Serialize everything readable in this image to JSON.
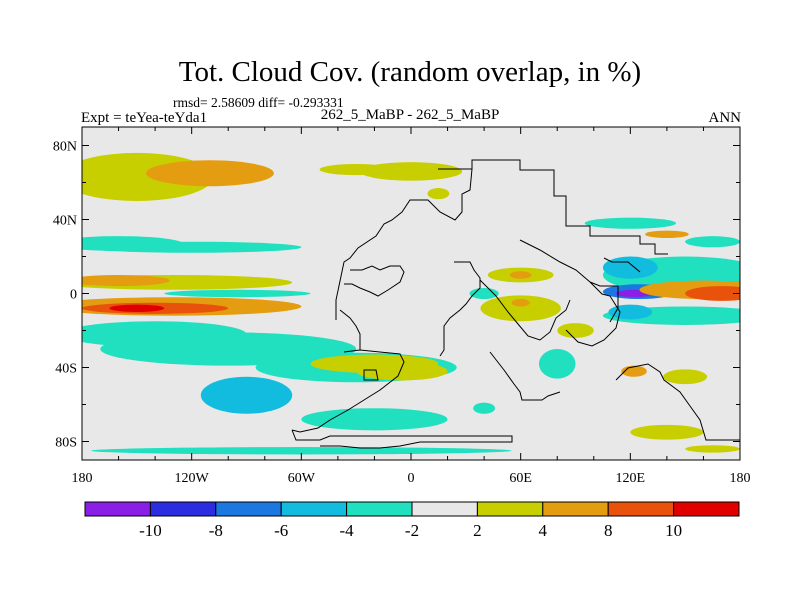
{
  "chart_data": {
    "type": "heatmap",
    "title": "Tot. Cloud Cov. (random overlap, in %)",
    "stats": "rmsd= 2.58609 diff= -0.293331",
    "left_label": "Expt = teYea-teYda1",
    "center_label": "262_5_MaBP - 262_5_MaBP",
    "right_label": "ANN",
    "xlim": [
      -180,
      180
    ],
    "ylim": [
      -90,
      90
    ],
    "x_ticks": [
      {
        "value": -180,
        "label": "180"
      },
      {
        "value": -120,
        "label": "120W"
      },
      {
        "value": -60,
        "label": "60W"
      },
      {
        "value": 0,
        "label": "0"
      },
      {
        "value": 60,
        "label": "60E"
      },
      {
        "value": 120,
        "label": "120E"
      },
      {
        "value": 180,
        "label": "180"
      }
    ],
    "y_ticks": [
      {
        "value": 80,
        "label": "80N"
      },
      {
        "value": 40,
        "label": "40N"
      },
      {
        "value": 0,
        "label": "0"
      },
      {
        "value": -40,
        "label": "40S"
      },
      {
        "value": -80,
        "label": "80S"
      }
    ],
    "colorbar": {
      "bins": [
        {
          "from": -12,
          "to": -10,
          "color": "#8a1fe6"
        },
        {
          "from": -10,
          "to": -8,
          "color": "#2c2ce0"
        },
        {
          "from": -8,
          "to": -6,
          "color": "#1b78e0"
        },
        {
          "from": -6,
          "to": -4,
          "color": "#12bcde"
        },
        {
          "from": -4,
          "to": -2,
          "color": "#20e0c0"
        },
        {
          "from": -2,
          "to": 2,
          "color": "#e8e8e8"
        },
        {
          "from": 2,
          "to": 4,
          "color": "#c8cf00"
        },
        {
          "from": 4,
          "to": 8,
          "color": "#e49c10"
        },
        {
          "from": 8,
          "to": 10,
          "color": "#e8520a"
        },
        {
          "from": 10,
          "to": 12,
          "color": "#e00000"
        }
      ],
      "labels": [
        {
          "value": -10,
          "label": "-10"
        },
        {
          "value": -8,
          "label": "-8"
        },
        {
          "value": -6,
          "label": "-6"
        },
        {
          "value": -4,
          "label": "-4"
        },
        {
          "value": -2,
          "label": "-2"
        },
        {
          "value": 2,
          "label": "2"
        },
        {
          "value": 4,
          "label": "4"
        },
        {
          "value": 8,
          "label": "8"
        },
        {
          "value": 10,
          "label": "10"
        }
      ]
    },
    "background_value": 0,
    "anomalies": [
      {
        "lon": -150,
        "lat": 63,
        "rlon": 42,
        "rlat": 13,
        "value": 3
      },
      {
        "lon": -110,
        "lat": 65,
        "rlon": 35,
        "rlat": 7,
        "value": 6
      },
      {
        "lon": -30,
        "lat": 67,
        "rlon": 20,
        "rlat": 3,
        "value": 3
      },
      {
        "lon": 0,
        "lat": 66,
        "rlon": 28,
        "rlat": 5,
        "value": 3
      },
      {
        "lon": -160,
        "lat": 27,
        "rlon": 35,
        "rlat": 4,
        "value": -3
      },
      {
        "lon": -120,
        "lat": 25,
        "rlon": 60,
        "rlat": 3,
        "value": -3
      },
      {
        "lon": -130,
        "lat": 6,
        "rlon": 65,
        "rlat": 4,
        "value": 3
      },
      {
        "lon": -160,
        "lat": 7,
        "rlon": 28,
        "rlat": 3,
        "value": 6
      },
      {
        "lon": -95,
        "lat": 0,
        "rlon": 40,
        "rlat": 2,
        "value": -3
      },
      {
        "lon": -130,
        "lat": -7,
        "rlon": 70,
        "rlat": 5,
        "value": 4
      },
      {
        "lon": -140,
        "lat": -8,
        "rlon": 40,
        "rlat": 3,
        "value": 9
      },
      {
        "lon": -150,
        "lat": -8,
        "rlon": 15,
        "rlat": 2,
        "value": 11
      },
      {
        "lon": -140,
        "lat": -22,
        "rlon": 50,
        "rlat": 7,
        "value": -3
      },
      {
        "lon": -100,
        "lat": -30,
        "rlon": 70,
        "rlat": 9,
        "value": -3
      },
      {
        "lon": -30,
        "lat": -40,
        "rlon": 55,
        "rlat": 8,
        "value": -3
      },
      {
        "lon": -90,
        "lat": -55,
        "rlon": 25,
        "rlat": 10,
        "value": -5
      },
      {
        "lon": -20,
        "lat": -38,
        "rlon": 35,
        "rlat": 5,
        "value": 3
      },
      {
        "lon": -5,
        "lat": -42,
        "rlon": 25,
        "rlat": 5,
        "value": 3
      },
      {
        "lon": -20,
        "lat": -68,
        "rlon": 40,
        "rlat": 6,
        "value": -3
      },
      {
        "lon": -60,
        "lat": -85,
        "rlon": 115,
        "rlat": 2,
        "value": -3
      },
      {
        "lon": 80,
        "lat": -38,
        "rlon": 10,
        "rlat": 8,
        "value": -3
      },
      {
        "lon": 60,
        "lat": 10,
        "rlon": 18,
        "rlat": 4,
        "value": 3
      },
      {
        "lon": 60,
        "lat": 10,
        "rlon": 6,
        "rlat": 2,
        "value": 6
      },
      {
        "lon": 40,
        "lat": 0,
        "rlon": 8,
        "rlat": 3,
        "value": -3
      },
      {
        "lon": 60,
        "lat": -8,
        "rlon": 22,
        "rlat": 7,
        "value": 3
      },
      {
        "lon": 60,
        "lat": -5,
        "rlon": 5,
        "rlat": 2,
        "value": 5
      },
      {
        "lon": 90,
        "lat": -20,
        "rlon": 10,
        "rlat": 4,
        "value": 3
      },
      {
        "lon": 150,
        "lat": 10,
        "rlon": 45,
        "rlat": 10,
        "value": -3
      },
      {
        "lon": 120,
        "lat": 14,
        "rlon": 15,
        "rlat": 6,
        "value": -5
      },
      {
        "lon": 125,
        "lat": 1,
        "rlon": 20,
        "rlat": 4,
        "value": -7
      },
      {
        "lon": 122,
        "lat": 0,
        "rlon": 10,
        "rlat": 2,
        "value": -11
      },
      {
        "lon": 160,
        "lat": 2,
        "rlon": 35,
        "rlat": 5,
        "value": 5
      },
      {
        "lon": 170,
        "lat": 0,
        "rlon": 20,
        "rlat": 4,
        "value": 9
      },
      {
        "lon": 150,
        "lat": -12,
        "rlon": 45,
        "rlat": 5,
        "value": -3
      },
      {
        "lon": 120,
        "lat": -10,
        "rlon": 12,
        "rlat": 4,
        "value": -5
      },
      {
        "lon": 165,
        "lat": 28,
        "rlon": 15,
        "rlat": 3,
        "value": -3
      },
      {
        "lon": 140,
        "lat": 32,
        "rlon": 12,
        "rlat": 2,
        "value": 5
      },
      {
        "lon": 122,
        "lat": -42,
        "rlon": 7,
        "rlat": 3,
        "value": 6
      },
      {
        "lon": 150,
        "lat": -45,
        "rlon": 12,
        "rlat": 4,
        "value": 3
      },
      {
        "lon": 140,
        "lat": -75,
        "rlon": 20,
        "rlat": 4,
        "value": 3
      },
      {
        "lon": 165,
        "lat": -84,
        "rlon": 15,
        "rlat": 2,
        "value": 3
      },
      {
        "lon": 40,
        "lat": -62,
        "rlon": 6,
        "rlat": 3,
        "value": -3
      },
      {
        "lon": 15,
        "lat": 54,
        "rlon": 6,
        "rlat": 3,
        "value": 3
      },
      {
        "lon": 120,
        "lat": 38,
        "rlon": 25,
        "rlat": 3,
        "value": -3
      }
    ]
  }
}
